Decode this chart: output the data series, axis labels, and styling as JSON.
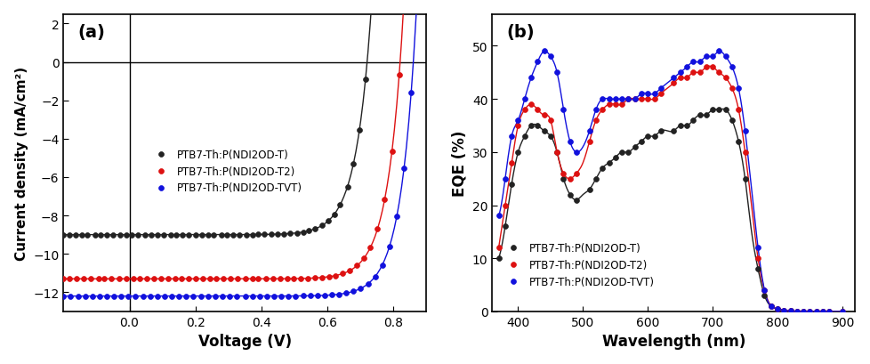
{
  "panel_a": {
    "title": "(a)",
    "xlabel": "Voltage (V)",
    "ylabel": "Current density (mA/cm²)",
    "xlim": [
      -0.2,
      0.9
    ],
    "ylim": [
      -13,
      2.5
    ],
    "xticks": [
      0.0,
      0.2,
      0.4,
      0.6,
      0.8
    ],
    "yticks": [
      -12,
      -10,
      -8,
      -6,
      -4,
      -2,
      0,
      2
    ],
    "series": {
      "black": {
        "label": "PTB7-Th:P(NDI2OD-T)",
        "color": "#222222",
        "Jsc": -9.0,
        "Voc": 0.72,
        "FF": 0.48
      },
      "red": {
        "label": "PTB7-Th:P(NDI2OD-T2)",
        "color": "#dd1111",
        "Jsc": -11.3,
        "Voc": 0.82,
        "FF": 0.5
      },
      "blue": {
        "label": "PTB7-Th:P(NDI2OD-TVT)",
        "color": "#1111dd",
        "Jsc": -12.2,
        "Voc": 0.86,
        "FF": 0.45
      }
    }
  },
  "panel_b": {
    "title": "(b)",
    "xlabel": "Wavelength (nm)",
    "ylabel": "EQE (%)",
    "xlim": [
      360,
      920
    ],
    "ylim": [
      0,
      56
    ],
    "xticks": [
      400,
      500,
      600,
      700,
      800,
      900
    ],
    "yticks": [
      0,
      10,
      20,
      30,
      40,
      50
    ],
    "black": {
      "label": "PTB7-Th:P(NDI2OD-T)",
      "color": "#222222",
      "wavelength": [
        370,
        380,
        390,
        400,
        410,
        420,
        430,
        440,
        450,
        460,
        470,
        480,
        490,
        500,
        510,
        520,
        530,
        540,
        550,
        560,
        570,
        580,
        590,
        600,
        610,
        620,
        630,
        640,
        650,
        660,
        670,
        680,
        690,
        700,
        710,
        720,
        730,
        740,
        750,
        760,
        770,
        780,
        790,
        800,
        810,
        820,
        830,
        840,
        850,
        860,
        870,
        880,
        890,
        900
      ],
      "eqe": [
        10,
        16,
        24,
        30,
        33,
        35,
        35,
        34,
        33,
        30,
        25,
        22,
        21,
        22,
        23,
        25,
        27,
        28,
        29,
        30,
        30,
        31,
        32,
        33,
        33,
        34,
        34,
        34,
        35,
        35,
        36,
        37,
        37,
        38,
        38,
        38,
        36,
        32,
        25,
        15,
        8,
        3,
        1,
        0.5,
        0.2,
        0.1,
        0,
        0,
        0,
        0,
        0,
        0,
        0,
        0
      ]
    },
    "red": {
      "label": "PTB7-Th:P(NDI2OD-T2)",
      "color": "#dd1111",
      "wavelength": [
        370,
        380,
        390,
        400,
        410,
        420,
        430,
        440,
        450,
        460,
        470,
        480,
        490,
        500,
        510,
        520,
        530,
        540,
        550,
        560,
        570,
        580,
        590,
        600,
        610,
        620,
        630,
        640,
        650,
        660,
        670,
        680,
        690,
        700,
        710,
        720,
        730,
        740,
        750,
        760,
        770,
        780,
        790,
        800,
        810,
        820,
        830,
        840,
        850,
        860,
        870,
        880,
        890,
        900
      ],
      "eqe": [
        12,
        20,
        28,
        35,
        38,
        39,
        38,
        37,
        36,
        30,
        26,
        25,
        26,
        28,
        32,
        36,
        38,
        39,
        39,
        39,
        40,
        40,
        40,
        40,
        40,
        41,
        42,
        43,
        44,
        44,
        45,
        45,
        46,
        46,
        45,
        44,
        42,
        38,
        30,
        20,
        10,
        4,
        1,
        0.5,
        0.2,
        0.1,
        0,
        0,
        0,
        0,
        0,
        0,
        0,
        0
      ]
    },
    "blue": {
      "label": "PTB7-Th:P(NDI2OD-TVT)",
      "color": "#1111dd",
      "wavelength": [
        370,
        380,
        390,
        400,
        410,
        420,
        430,
        440,
        450,
        460,
        470,
        480,
        490,
        500,
        510,
        520,
        530,
        540,
        550,
        560,
        570,
        580,
        590,
        600,
        610,
        620,
        630,
        640,
        650,
        660,
        670,
        680,
        690,
        700,
        710,
        720,
        730,
        740,
        750,
        760,
        770,
        780,
        790,
        800,
        810,
        820,
        830,
        840,
        850,
        860,
        870,
        880,
        890,
        900
      ],
      "eqe": [
        18,
        25,
        33,
        36,
        40,
        44,
        47,
        49,
        48,
        45,
        38,
        32,
        30,
        31,
        34,
        38,
        40,
        40,
        40,
        40,
        40,
        40,
        41,
        41,
        41,
        42,
        43,
        44,
        45,
        46,
        47,
        47,
        48,
        48,
        49,
        48,
        46,
        42,
        34,
        23,
        12,
        4,
        1,
        0.5,
        0.2,
        0.1,
        0,
        0,
        0,
        0,
        0,
        0,
        0,
        0
      ]
    }
  }
}
